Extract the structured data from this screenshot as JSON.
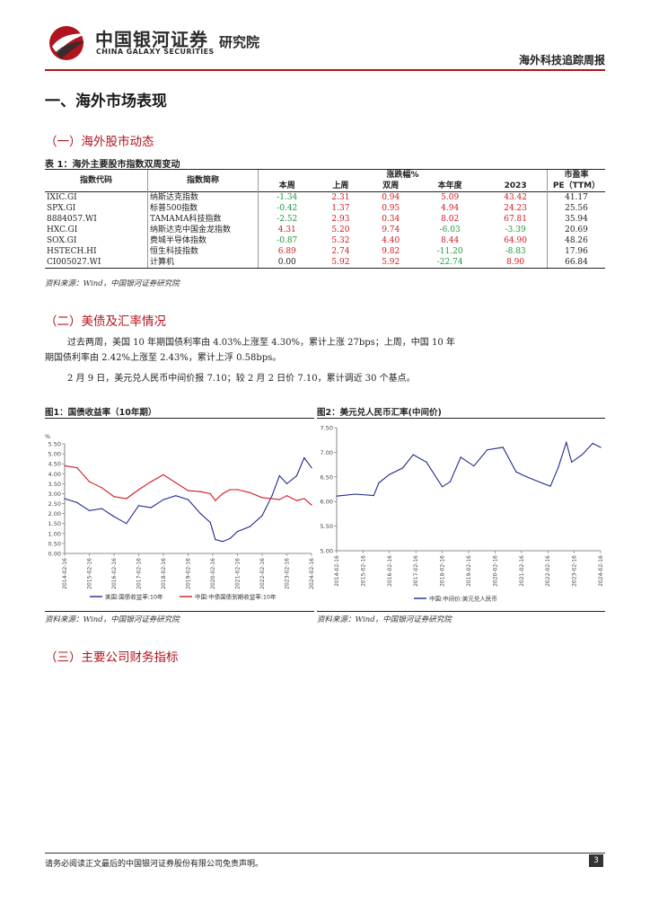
{
  "header": {
    "brand_cn": "中国银河证券",
    "brand_en": "CHINA GALAXY SECURITIES",
    "institute": "研究院",
    "report_name": "海外科技追踪周报",
    "brand_color": "#b0141e"
  },
  "section1": {
    "title": "一、海外市场表现"
  },
  "sub1": {
    "title": "（一）海外股市动态"
  },
  "table1": {
    "caption": "表 1：海外主要股市指数双周变动",
    "headers": {
      "code": "指数代码",
      "name": "指数简称",
      "change_group": "涨跌幅%",
      "this_week": "本周",
      "last_week": "上周",
      "two_weeks": "双周",
      "ytd": "本年度",
      "y2023": "2023",
      "pe_1": "市盈率",
      "pe_2": "PE（TTM）"
    },
    "rows": [
      {
        "code": "IXIC.GI",
        "name": "纳斯达克指数",
        "this_week": "-1.34",
        "last_week": "2.31",
        "two_weeks": "0.94",
        "ytd": "5.09",
        "y2023": "43.42",
        "pe": "41.17"
      },
      {
        "code": "SPX.GI",
        "name": "标普500指数",
        "this_week": "-0.42",
        "last_week": "1.37",
        "two_weeks": "0.95",
        "ytd": "4.94",
        "y2023": "24.23",
        "pe": "25.56"
      },
      {
        "code": "8884057.WI",
        "name": "TAMAMA科技指数",
        "this_week": "-2.52",
        "last_week": "2.93",
        "two_weeks": "0.34",
        "ytd": "8.02",
        "y2023": "67.81",
        "pe": "35.94"
      },
      {
        "code": "HXC.GI",
        "name": "纳斯达克中国金龙指数",
        "this_week": "4.31",
        "last_week": "5.20",
        "two_weeks": "9.74",
        "ytd": "-6.03",
        "y2023": "-3.39",
        "pe": "20.69"
      },
      {
        "code": "SOX.GI",
        "name": "费城半导体指数",
        "this_week": "-0.87",
        "last_week": "5.32",
        "two_weeks": "4.40",
        "ytd": "8.44",
        "y2023": "64.90",
        "pe": "48.26"
      },
      {
        "code": "HSTECH.HI",
        "name": "恒生科技指数",
        "this_week": "6.89",
        "last_week": "2.74",
        "two_weeks": "9.82",
        "ytd": "-11.20",
        "y2023": "-8.83",
        "pe": "17.96"
      },
      {
        "code": "CI005027.WI",
        "name": "计算机",
        "this_week": "0.00",
        "last_week": "5.92",
        "two_weeks": "5.92",
        "ytd": "-22.74",
        "y2023": "8.90",
        "pe": "66.84"
      }
    ],
    "source": "资料来源：Wind，中国银河证券研究院",
    "positive_color": "#d0181e",
    "negative_color": "#1a9a3c"
  },
  "sub2": {
    "title": "（二）美债及汇率情况",
    "para1": "过去两周，美国 10 年期国债利率由 4.03%上涨至 4.30%，累计上涨 27bps；上周，中国 10 年",
    "para1b": "期国债利率由 2.42%上涨至 2.43%，累计上浮 0.58bps。",
    "para2": "2 月 9 日，美元兑人民币中间价报 7.10；较 2 月 2 日价 7.10，累计调近 30 个基点。"
  },
  "fig1": {
    "title": "图1：国债收益率（10年期）",
    "source": "资料来源：Wind，中国银河证券研究院",
    "chart_data": {
      "type": "line",
      "title": "图1：国债收益率（10年期）",
      "ylabel": "%",
      "ylim": [
        0,
        5.5
      ],
      "yticks": [
        "0.00",
        "0.50",
        "1.00",
        "1.50",
        "2.00",
        "2.50",
        "3.00",
        "3.50",
        "4.00",
        "4.50",
        "5.00",
        "5.50"
      ],
      "x_tick_labels": [
        "2014-02-16",
        "2015-02-16",
        "2016-02-16",
        "2017-02-16",
        "2018-02-16",
        "2019-02-16",
        "2020-02-16",
        "2021-02-16",
        "2022-02-16",
        "2023-02-16",
        "2024-02-16"
      ],
      "x": [
        2014.1,
        2014.6,
        2015.1,
        2015.6,
        2016.1,
        2016.6,
        2017.1,
        2017.6,
        2018.1,
        2018.6,
        2019.1,
        2019.6,
        2020.0,
        2020.2,
        2020.5,
        2020.8,
        2021.1,
        2021.6,
        2022.1,
        2022.5,
        2022.8,
        2023.1,
        2023.5,
        2023.8,
        2024.1
      ],
      "series": [
        {
          "name": "美国:国债收益率:10年",
          "color": "#1f2a8f",
          "values": [
            2.75,
            2.55,
            2.15,
            2.25,
            1.85,
            1.5,
            2.4,
            2.3,
            2.7,
            2.9,
            2.7,
            2.0,
            1.55,
            0.7,
            0.6,
            0.75,
            1.1,
            1.35,
            1.9,
            2.9,
            3.9,
            3.5,
            3.9,
            4.8,
            4.3
          ]
        },
        {
          "name": "中国:中债国债到期收益率:10年",
          "color": "#d0181e",
          "values": [
            4.4,
            4.3,
            3.6,
            3.3,
            2.85,
            2.75,
            3.2,
            3.6,
            3.95,
            3.55,
            3.15,
            3.1,
            3.0,
            2.65,
            3.0,
            3.2,
            3.2,
            3.05,
            2.8,
            2.75,
            2.7,
            2.9,
            2.65,
            2.75,
            2.43
          ]
        }
      ],
      "legend": "bottom"
    }
  },
  "fig2": {
    "title": "图2：美元兑人民币汇率(中间价)",
    "source": "资料来源：Wind，中国银河证券研究院",
    "chart_data": {
      "type": "line",
      "title": "图2：美元兑人民币汇率(中间价)",
      "ylim": [
        5.0,
        7.5
      ],
      "yticks": [
        "5.00",
        "5.50",
        "6.00",
        "6.50",
        "7.00",
        "7.50"
      ],
      "x_tick_labels": [
        "2014-02-16",
        "2015-02-16",
        "2016-02-16",
        "2017-02-16",
        "2018-02-16",
        "2019-02-16",
        "2020-02-16",
        "2021-02-16",
        "2022-02-16",
        "2023-02-16",
        "2024-02-16"
      ],
      "x": [
        2014.1,
        2014.8,
        2015.5,
        2015.7,
        2016.1,
        2016.6,
        2017.0,
        2017.5,
        2018.1,
        2018.4,
        2018.8,
        2019.3,
        2019.8,
        2020.4,
        2020.9,
        2021.3,
        2021.9,
        2022.2,
        2022.5,
        2022.8,
        2023.0,
        2023.4,
        2023.8,
        2024.1
      ],
      "series": [
        {
          "name": "中国:中间价:美元兑人民币",
          "color": "#1f2a8f",
          "values": [
            6.11,
            6.15,
            6.12,
            6.38,
            6.55,
            6.68,
            6.95,
            6.8,
            6.3,
            6.4,
            6.9,
            6.72,
            7.05,
            7.1,
            6.6,
            6.5,
            6.37,
            6.31,
            6.7,
            7.2,
            6.8,
            6.95,
            7.18,
            7.1
          ]
        }
      ],
      "legend": "bottom"
    }
  },
  "sub3": {
    "title": "（三）主要公司财务指标"
  },
  "footer": {
    "disclaimer": "请务必阅读正文最后的中国银河证券股份有限公司免责声明。",
    "page": "3"
  }
}
